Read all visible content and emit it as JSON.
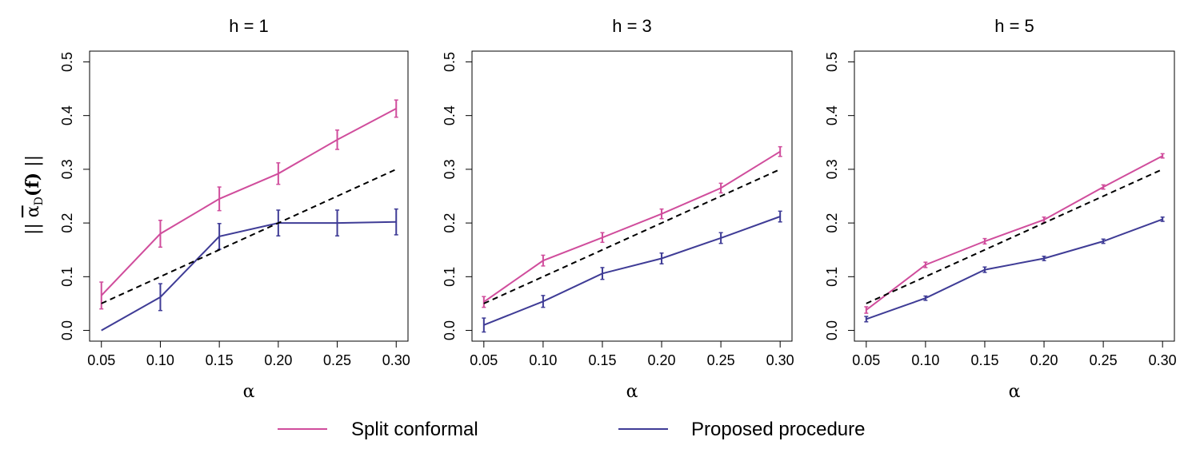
{
  "colors": {
    "split": "#d04d9c",
    "proposed": "#3f3c96",
    "reference": "#000000"
  },
  "y_axis_label": {
    "prefix": "|| ",
    "alpha": "α",
    "sub": "D",
    "fpart": "(f)",
    "suffix": " ||"
  },
  "legend": [
    {
      "label": "Split conformal",
      "color": "#d04d9c"
    },
    {
      "label": "Proposed procedure",
      "color": "#3f3c96"
    }
  ],
  "chart_data": [
    {
      "type": "line",
      "title": "h = 1",
      "xlabel": "α",
      "x": [
        0.05,
        0.1,
        0.15,
        0.2,
        0.25,
        0.3
      ],
      "x_tick_labels": [
        "0.05",
        "0.10",
        "0.15",
        "0.20",
        "0.25",
        "0.30"
      ],
      "y_tick_labels": [
        "0.0",
        "0.1",
        "0.2",
        "0.3",
        "0.4",
        "0.5"
      ],
      "y_ticks": [
        0,
        0.1,
        0.2,
        0.3,
        0.4,
        0.5
      ],
      "xlim": [
        0.04,
        0.31
      ],
      "ylim": [
        -0.02,
        0.52
      ],
      "series": [
        {
          "name": "Split conformal",
          "values": [
            0.065,
            0.18,
            0.245,
            0.292,
            0.355,
            0.413
          ],
          "err": [
            0.025,
            0.025,
            0.022,
            0.02,
            0.018,
            0.016
          ]
        },
        {
          "name": "Proposed procedure",
          "values": [
            0.0,
            0.062,
            0.175,
            0.2,
            0.2,
            0.202
          ],
          "err": [
            0.0,
            0.025,
            0.024,
            0.024,
            0.024,
            0.024
          ]
        },
        {
          "name": "Reference",
          "values": [
            0.05,
            0.1,
            0.15,
            0.2,
            0.25,
            0.3
          ],
          "dashed": true
        }
      ]
    },
    {
      "type": "line",
      "title": "h = 3",
      "xlabel": "α",
      "x": [
        0.05,
        0.1,
        0.15,
        0.2,
        0.25,
        0.3
      ],
      "x_tick_labels": [
        "0.05",
        "0.10",
        "0.15",
        "0.20",
        "0.25",
        "0.30"
      ],
      "y_tick_labels": [
        "0.0",
        "0.1",
        "0.2",
        "0.3",
        "0.4",
        "0.5"
      ],
      "y_ticks": [
        0,
        0.1,
        0.2,
        0.3,
        0.4,
        0.5
      ],
      "xlim": [
        0.04,
        0.31
      ],
      "ylim": [
        -0.02,
        0.52
      ],
      "series": [
        {
          "name": "Split conformal",
          "values": [
            0.053,
            0.13,
            0.173,
            0.217,
            0.265,
            0.333
          ],
          "err": [
            0.01,
            0.01,
            0.009,
            0.009,
            0.009,
            0.009
          ]
        },
        {
          "name": "Proposed procedure",
          "values": [
            0.01,
            0.054,
            0.106,
            0.134,
            0.172,
            0.212
          ],
          "err": [
            0.013,
            0.011,
            0.011,
            0.01,
            0.01,
            0.01
          ]
        },
        {
          "name": "Reference",
          "values": [
            0.05,
            0.1,
            0.15,
            0.2,
            0.25,
            0.3
          ],
          "dashed": true
        }
      ]
    },
    {
      "type": "line",
      "title": "h = 5",
      "xlabel": "α",
      "x": [
        0.05,
        0.1,
        0.15,
        0.2,
        0.25,
        0.3
      ],
      "x_tick_labels": [
        "0.05",
        "0.10",
        "0.15",
        "0.20",
        "0.25",
        "0.30"
      ],
      "y_tick_labels": [
        "0.0",
        "0.1",
        "0.2",
        "0.3",
        "0.4",
        "0.5"
      ],
      "y_ticks": [
        0,
        0.1,
        0.2,
        0.3,
        0.4,
        0.5
      ],
      "xlim": [
        0.04,
        0.31
      ],
      "ylim": [
        -0.02,
        0.52
      ],
      "series": [
        {
          "name": "Split conformal",
          "values": [
            0.038,
            0.122,
            0.166,
            0.206,
            0.267,
            0.325
          ],
          "err": [
            0.006,
            0.005,
            0.005,
            0.005,
            0.004,
            0.004
          ]
        },
        {
          "name": "Proposed procedure",
          "values": [
            0.021,
            0.06,
            0.113,
            0.134,
            0.166,
            0.207
          ],
          "err": [
            0.005,
            0.004,
            0.005,
            0.004,
            0.004,
            0.004
          ]
        },
        {
          "name": "Reference",
          "values": [
            0.05,
            0.1,
            0.15,
            0.2,
            0.25,
            0.3
          ],
          "dashed": true
        }
      ]
    }
  ]
}
